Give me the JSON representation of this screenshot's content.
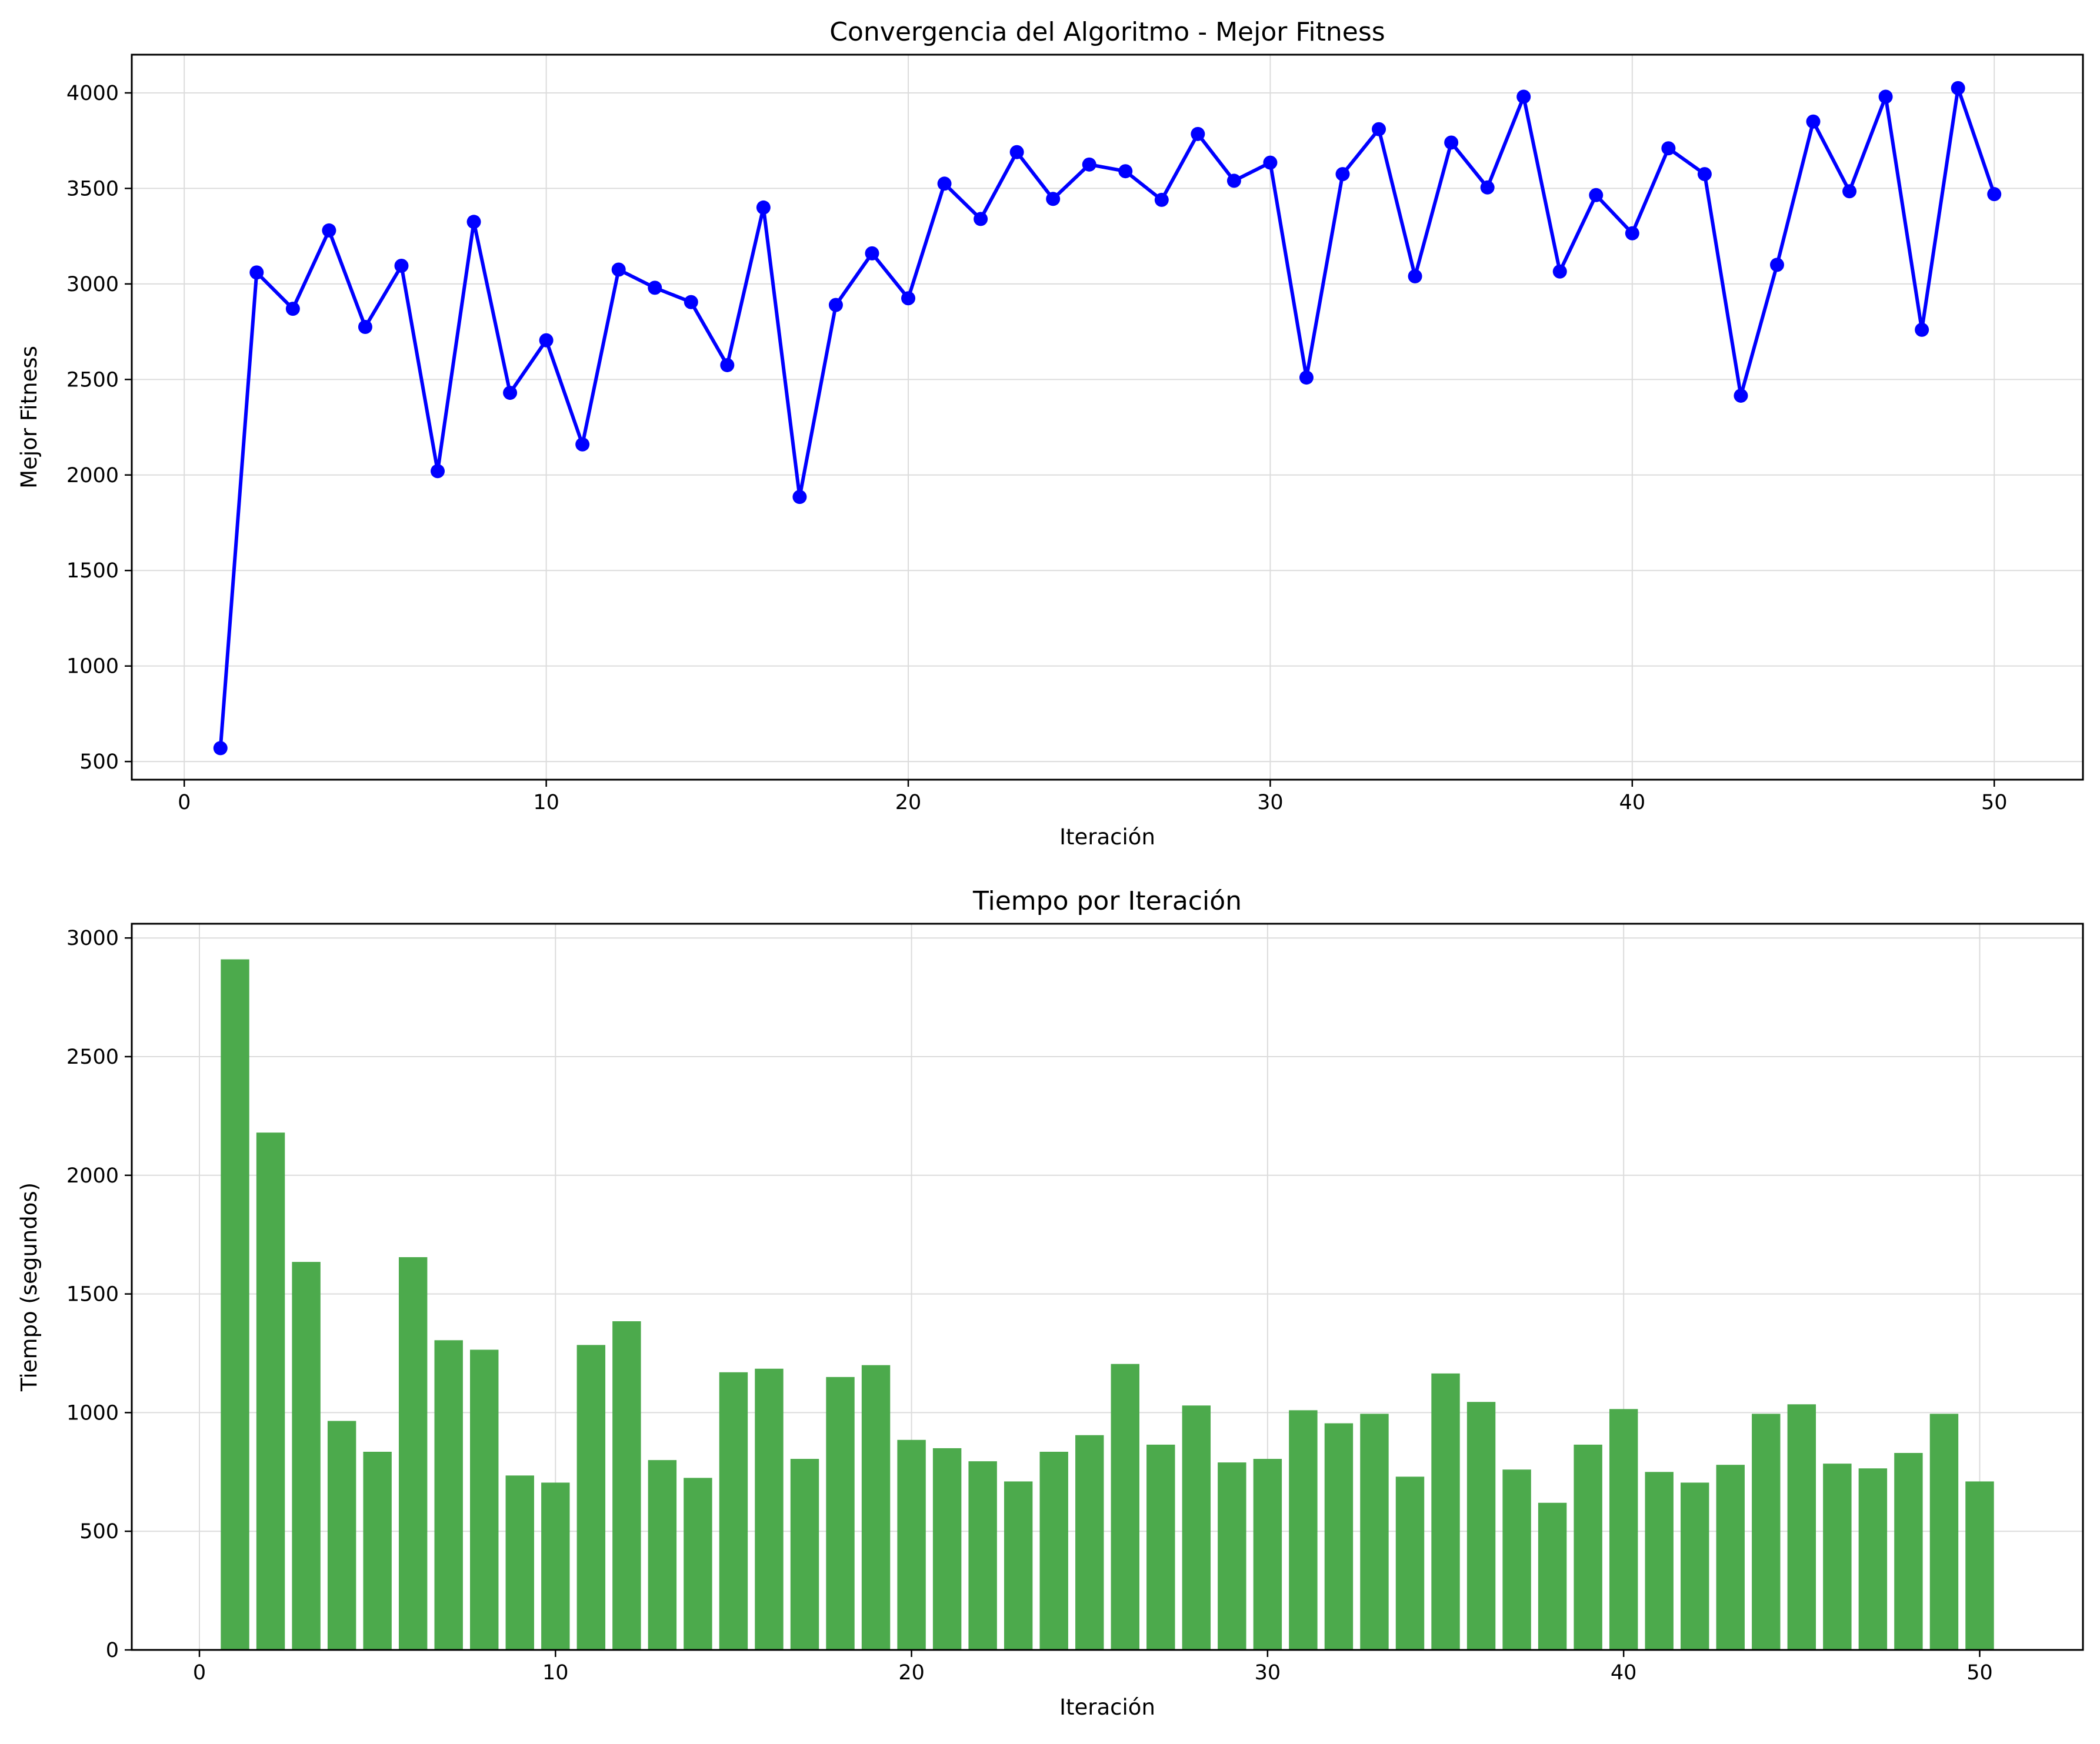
{
  "chart_data": [
    {
      "type": "line",
      "title": "Convergencia del Algoritmo - Mejor Fitness",
      "xlabel": "Iteración",
      "ylabel": "Mejor Fitness",
      "xlim": [
        -1.45,
        52.45
      ],
      "ylim": [
        405,
        4200
      ],
      "xticks": [
        0,
        10,
        20,
        30,
        40,
        50
      ],
      "yticks": [
        500,
        1000,
        1500,
        2000,
        2500,
        3000,
        3500,
        4000
      ],
      "grid": true,
      "legend": "none",
      "series": [
        {
          "color": "#0000ff",
          "marker": "circle",
          "x": [
            1,
            2,
            3,
            4,
            5,
            6,
            7,
            8,
            9,
            10,
            11,
            12,
            13,
            14,
            15,
            16,
            17,
            18,
            19,
            20,
            21,
            22,
            23,
            24,
            25,
            26,
            27,
            28,
            29,
            30,
            31,
            32,
            33,
            34,
            35,
            36,
            37,
            38,
            39,
            40,
            41,
            42,
            43,
            44,
            45,
            46,
            47,
            48,
            49,
            50
          ],
          "values": [
            570,
            3060,
            2870,
            3280,
            2775,
            3095,
            2020,
            3325,
            2430,
            2705,
            2160,
            3075,
            2980,
            2905,
            2575,
            3400,
            1885,
            2890,
            3160,
            2925,
            3525,
            3340,
            3690,
            3445,
            3625,
            3590,
            3440,
            3785,
            3540,
            3635,
            2510,
            3575,
            3810,
            3040,
            3740,
            3505,
            3980,
            3065,
            3465,
            3265,
            3710,
            3575,
            2415,
            3100,
            3850,
            3485,
            3980,
            2760,
            4025,
            3470
          ]
        }
      ]
    },
    {
      "type": "bar",
      "title": "Tiempo por Iteración",
      "xlabel": "Iteración",
      "ylabel": "Tiempo (segundos)",
      "xlim": [
        -1.9,
        52.9
      ],
      "ylim": [
        0,
        3060
      ],
      "xticks": [
        0,
        10,
        20,
        30,
        40,
        50
      ],
      "yticks": [
        0,
        500,
        1000,
        1500,
        2000,
        2500,
        3000
      ],
      "grid": true,
      "legend": "none",
      "series": [
        {
          "color": "#4caa4c",
          "x": [
            1,
            2,
            3,
            4,
            5,
            6,
            7,
            8,
            9,
            10,
            11,
            12,
            13,
            14,
            15,
            16,
            17,
            18,
            19,
            20,
            21,
            22,
            23,
            24,
            25,
            26,
            27,
            28,
            29,
            30,
            31,
            32,
            33,
            34,
            35,
            36,
            37,
            38,
            39,
            40,
            41,
            42,
            43,
            44,
            45,
            46,
            47,
            48,
            49,
            50
          ],
          "values": [
            2910,
            2180,
            1635,
            965,
            835,
            1655,
            1305,
            1265,
            735,
            705,
            1285,
            1385,
            800,
            725,
            1170,
            1185,
            805,
            1150,
            1200,
            885,
            850,
            795,
            710,
            835,
            905,
            1205,
            865,
            1030,
            790,
            805,
            1010,
            955,
            995,
            730,
            1165,
            1045,
            760,
            620,
            865,
            1015,
            750,
            705,
            780,
            995,
            1035,
            785,
            765,
            830,
            995,
            710
          ]
        }
      ]
    }
  ]
}
